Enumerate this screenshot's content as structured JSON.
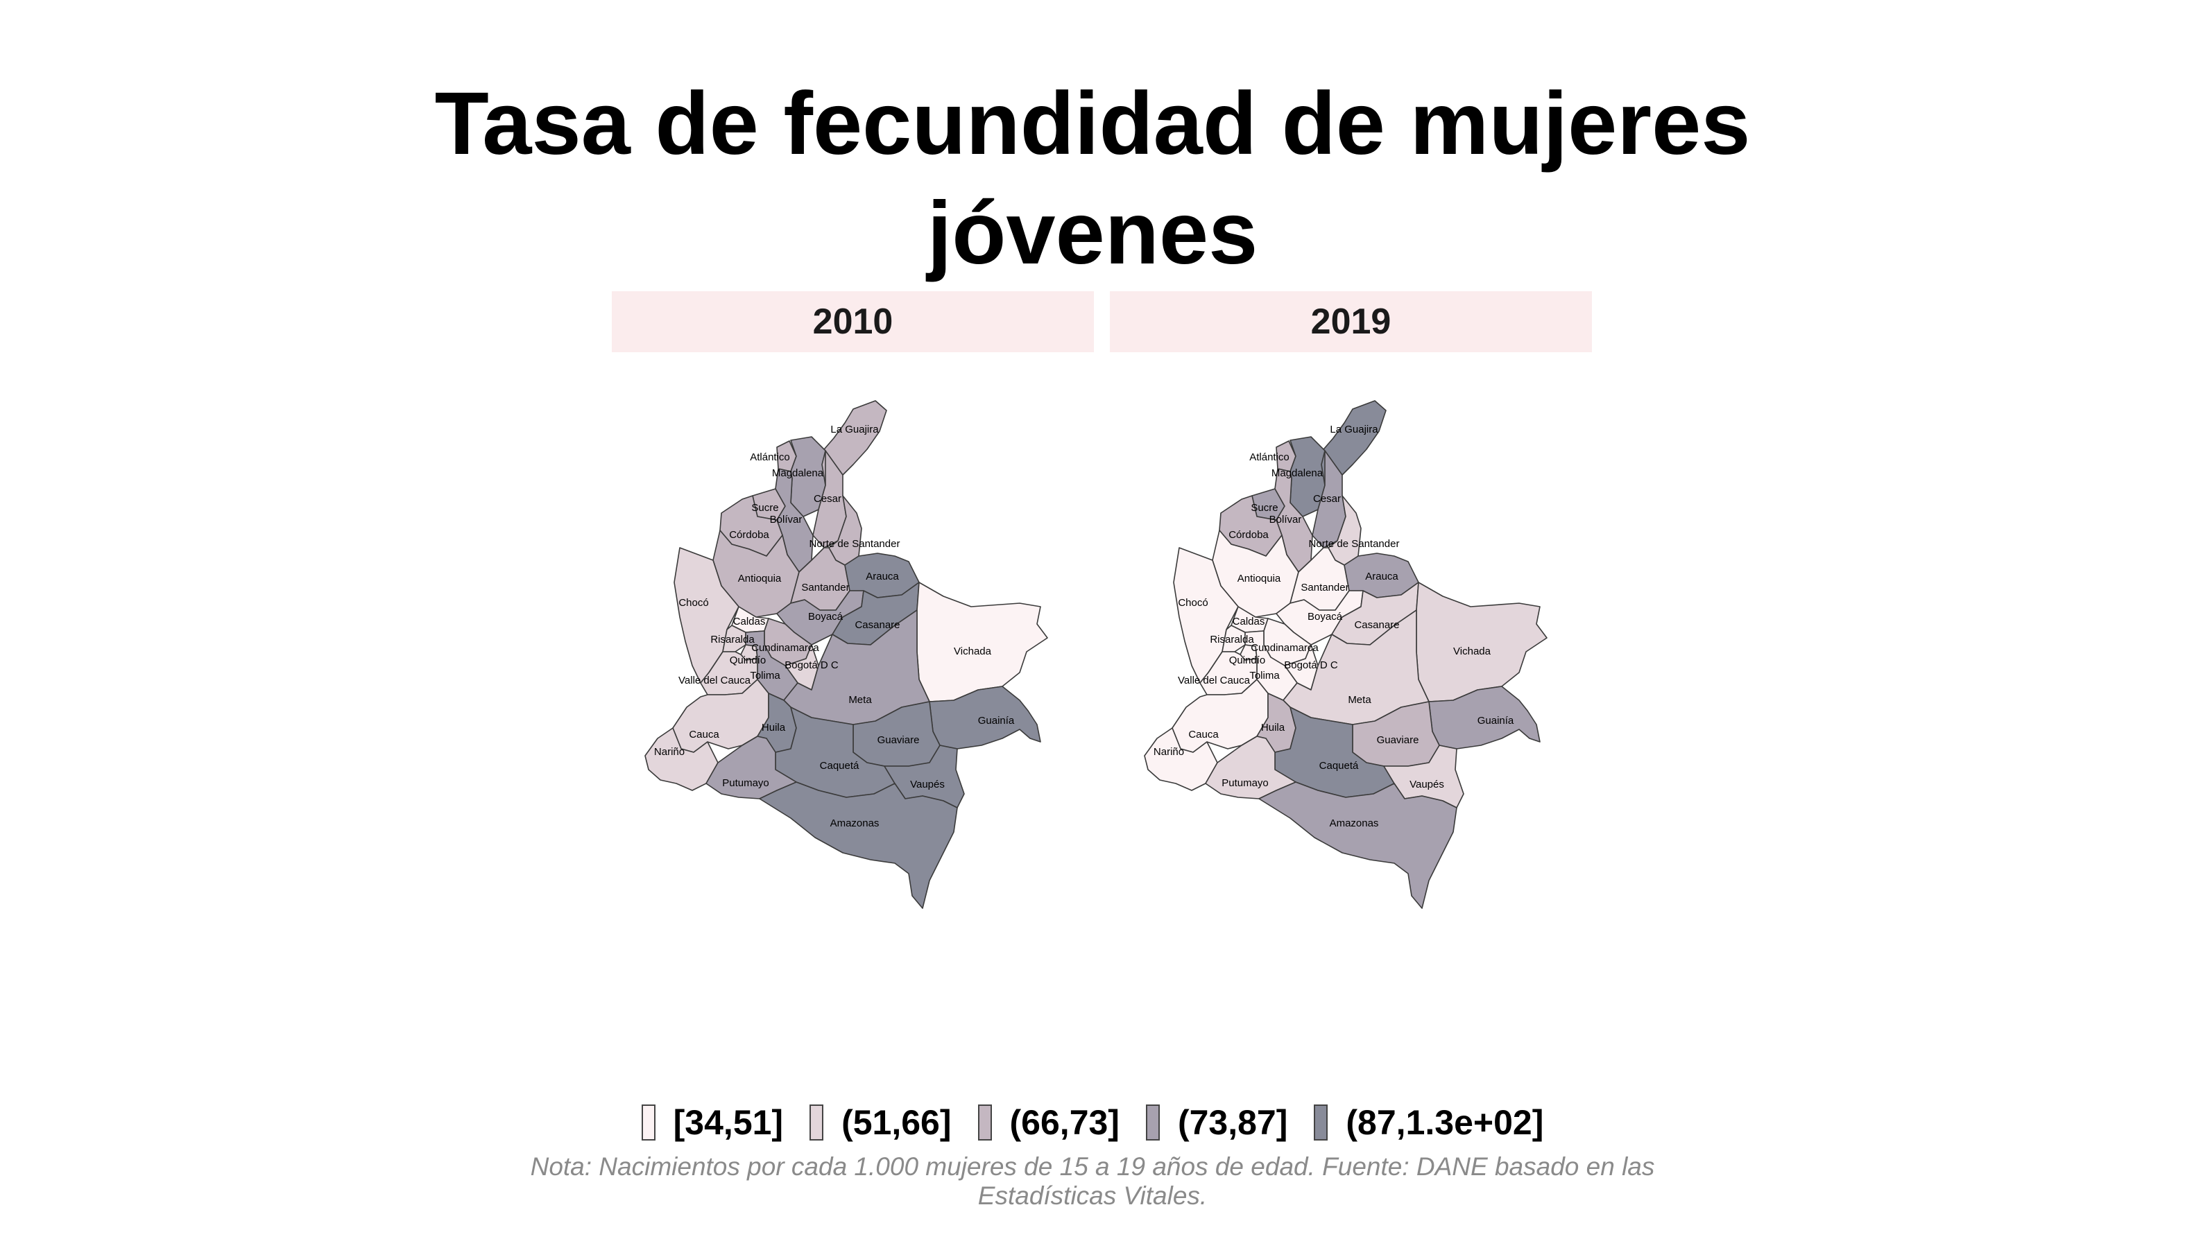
{
  "title_line1": "Tasa de fecundidad de mujeres",
  "title_line2": "jóvenes",
  "panels": [
    "2010",
    "2019"
  ],
  "colors": {
    "c1": "#fcf3f4",
    "c2": "#e3d6db",
    "c3": "#c4b7c1",
    "c4": "#a7a1af",
    "c5": "#888b99"
  },
  "legend": [
    {
      "label": "[34,51]",
      "color_key": "c1"
    },
    {
      "label": "(51,66]",
      "color_key": "c2"
    },
    {
      "label": "(66,73]",
      "color_key": "c3"
    },
    {
      "label": "(73,87]",
      "color_key": "c4"
    },
    {
      "label": "(87,1.3e+02]",
      "color_key": "c5"
    }
  ],
  "caption_line1": "Nota: Nacimientos por cada 1.000 mujeres de 15 a 19 años de edad. Fuente: DANE basado en las",
  "caption_line2": "Estadísticas Vitales.",
  "departments": [
    {
      "id": "guajira",
      "label": "La Guajira",
      "c2010": "c3",
      "c2019": "c5"
    },
    {
      "id": "atlantico",
      "label": "Atlántico",
      "c2010": "c3",
      "c2019": "c3"
    },
    {
      "id": "magdalena",
      "label": "Magdalena",
      "c2010": "c4",
      "c2019": "c5"
    },
    {
      "id": "cesar",
      "label": "Cesar",
      "c2010": "c3",
      "c2019": "c4"
    },
    {
      "id": "sucre",
      "label": "Sucre",
      "c2010": "c3",
      "c2019": "c4"
    },
    {
      "id": "bolivar",
      "label": "Bolívar",
      "c2010": "c4",
      "c2019": "c3"
    },
    {
      "id": "cordoba",
      "label": "Córdoba",
      "c2010": "c3",
      "c2019": "c3"
    },
    {
      "id": "norte_santander",
      "label": "Norte de Santander",
      "c2010": "c3",
      "c2019": "c2"
    },
    {
      "id": "antioquia",
      "label": "Antioquia",
      "c2010": "c3",
      "c2019": "c1"
    },
    {
      "id": "santander",
      "label": "Santander",
      "c2010": "c3",
      "c2019": "c1"
    },
    {
      "id": "arauca",
      "label": "Arauca",
      "c2010": "c5",
      "c2019": "c4"
    },
    {
      "id": "choco",
      "label": "Chocó",
      "c2010": "c2",
      "c2019": "c1"
    },
    {
      "id": "caldas",
      "label": "Caldas",
      "c2010": "c1",
      "c2019": "c1"
    },
    {
      "id": "risaralda",
      "label": "Risaralda",
      "c2010": "c2",
      "c2019": "c1"
    },
    {
      "id": "boyaca",
      "label": "Boyacá",
      "c2010": "c4",
      "c2019": "c1"
    },
    {
      "id": "casanare",
      "label": "Casanare",
      "c2010": "c5",
      "c2019": "c2"
    },
    {
      "id": "vichada",
      "label": "Vichada",
      "c2010": "c1",
      "c2019": "c2"
    },
    {
      "id": "cundinamarca",
      "label": "Cundinamarca",
      "c2010": "c3",
      "c2019": "c1"
    },
    {
      "id": "quindio",
      "label": "Quindío",
      "c2010": "c2",
      "c2019": "c1"
    },
    {
      "id": "bogota",
      "label": "Bogotá D C",
      "c2010": "c2",
      "c2019": "c1"
    },
    {
      "id": "tolima",
      "label": "Tolima",
      "c2010": "c4",
      "c2019": "c1"
    },
    {
      "id": "valle",
      "label": "Valle del Cauca",
      "c2010": "c2",
      "c2019": "c1"
    },
    {
      "id": "meta",
      "label": "Meta",
      "c2010": "c4",
      "c2019": "c2"
    },
    {
      "id": "guainia",
      "label": "Guainía",
      "c2010": "c5",
      "c2019": "c4"
    },
    {
      "id": "cauca",
      "label": "Cauca",
      "c2010": "c2",
      "c2019": "c1"
    },
    {
      "id": "huila",
      "label": "Huila",
      "c2010": "c5",
      "c2019": "c3"
    },
    {
      "id": "guaviare",
      "label": "Guaviare",
      "c2010": "c5",
      "c2019": "c3"
    },
    {
      "id": "narino",
      "label": "Nariño",
      "c2010": "c2",
      "c2019": "c1"
    },
    {
      "id": "caqueta",
      "label": "Caquetá",
      "c2010": "c5",
      "c2019": "c5"
    },
    {
      "id": "vaupes",
      "label": "Vaupés",
      "c2010": "c5",
      "c2019": "c2"
    },
    {
      "id": "putumayo",
      "label": "Putumayo",
      "c2010": "c4",
      "c2019": "c2"
    },
    {
      "id": "amazonas",
      "label": "Amazonas",
      "c2010": "c5",
      "c2019": "c4"
    }
  ]
}
